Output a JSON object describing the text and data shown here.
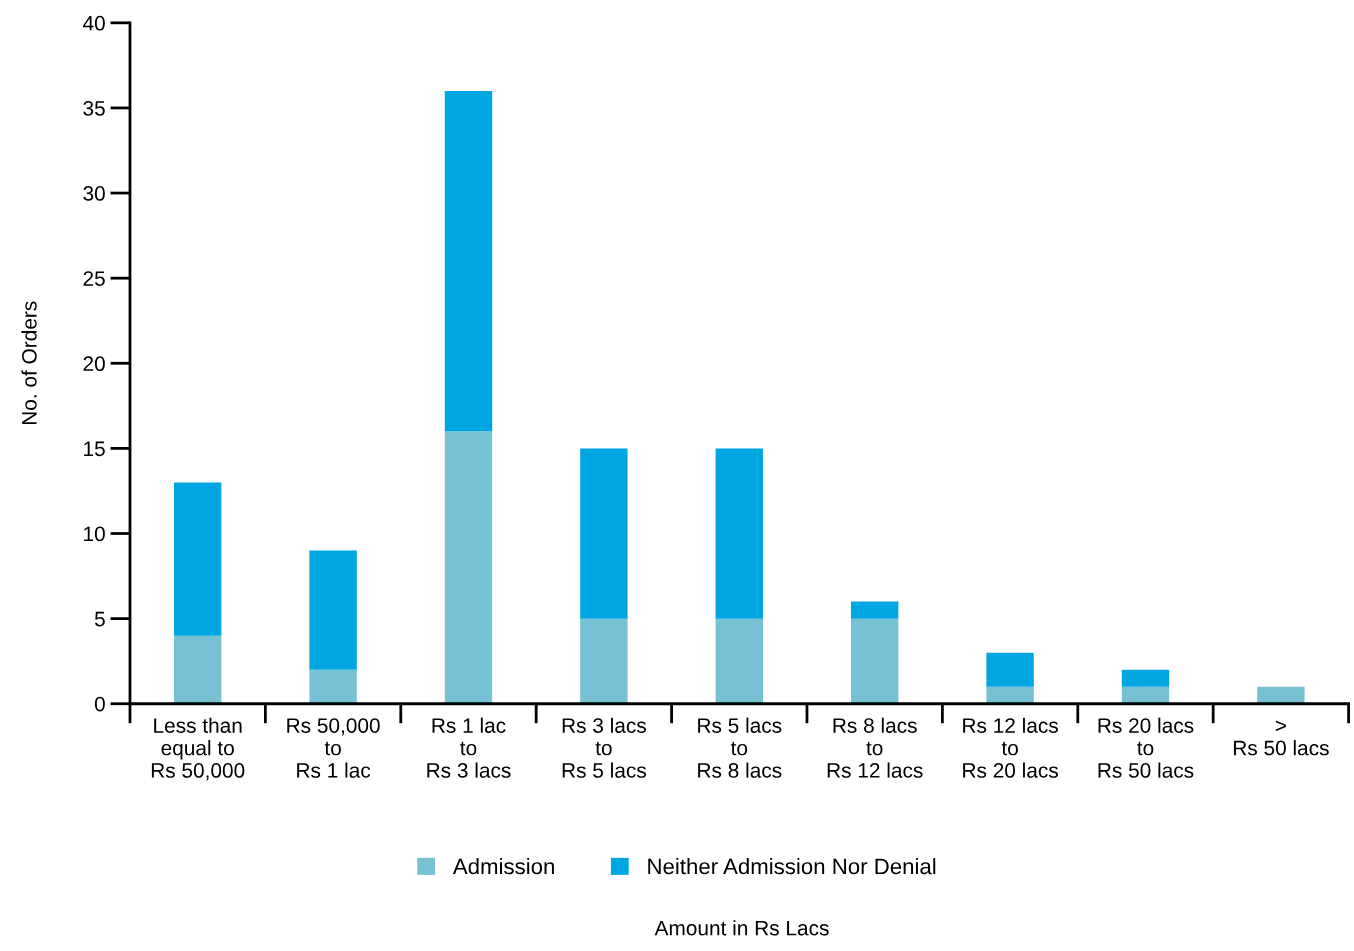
{
  "chart_data": {
    "type": "bar",
    "stacked": true,
    "annotations": [
      "Amount in Rs Lacs"
    ],
    "ylabel": "No. of Orders",
    "categories": [
      "Less than\nequal to\nRs 50,000",
      "Rs 50,000\nto\nRs 1 lac",
      "Rs 1 lac\nto\nRs 3 lacs",
      "Rs 3 lacs\nto\nRs 5 lacs",
      "Rs 5 lacs\nto\nRs 8 lacs",
      "Rs 8 lacs\nto\nRs 12 lacs",
      "Rs 12 lacs\nto\nRs 20 lacs",
      "Rs 20 lacs\nto\nRs 50 lacs",
      ">\nRs 50 lacs"
    ],
    "series": [
      {
        "name": "Admission",
        "color": "#77c1d4",
        "values": [
          4,
          2,
          16,
          5,
          5,
          5,
          1,
          1,
          1
        ]
      },
      {
        "name": "Neither Admission Nor Denial",
        "color": "#00a6e2",
        "values": [
          9,
          7,
          20,
          10,
          10,
          1,
          2,
          1,
          0
        ]
      }
    ],
    "ylim": [
      0,
      40
    ],
    "yticks": [
      0,
      5,
      10,
      15,
      20,
      25,
      30,
      35,
      40
    ],
    "grid": false,
    "legend": "bottom"
  }
}
